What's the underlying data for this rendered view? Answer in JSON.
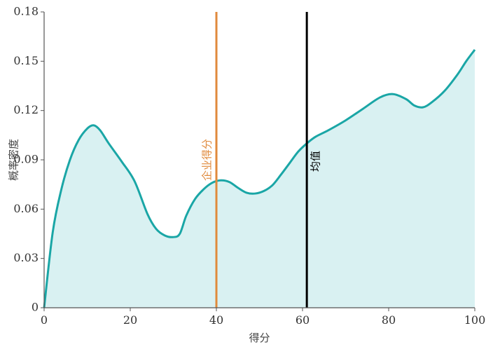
{
  "chart_data": {
    "type": "area",
    "xlabel": "得分",
    "ylabel": "概率密度",
    "xlim": [
      0,
      100
    ],
    "ylim": [
      0,
      0.18
    ],
    "x_ticks": [
      "0",
      "20",
      "40",
      "60",
      "80",
      "100"
    ],
    "y_ticks": [
      "0",
      "0.03",
      "0.06",
      "0.09",
      "0.12",
      "0.15",
      "0.18"
    ],
    "grid": false,
    "series": [
      {
        "x": [
          0,
          2,
          4,
          6,
          8,
          10,
          11.5,
          13,
          15,
          18,
          21,
          24,
          26,
          28,
          30,
          31.5,
          33,
          35,
          37,
          39,
          41,
          43,
          45,
          47,
          49,
          51,
          53,
          55,
          57,
          59,
          61,
          63,
          66,
          70,
          74,
          78,
          81,
          84,
          86,
          88,
          90,
          93,
          96,
          98,
          100
        ],
        "y": [
          0,
          0.046,
          0.072,
          0.09,
          0.102,
          0.109,
          0.111,
          0.108,
          0.1,
          0.089,
          0.077,
          0.057,
          0.048,
          0.044,
          0.043,
          0.045,
          0.056,
          0.066,
          0.072,
          0.076,
          0.0775,
          0.0765,
          0.073,
          0.07,
          0.0695,
          0.071,
          0.0745,
          0.081,
          0.088,
          0.095,
          0.1,
          0.104,
          0.108,
          0.114,
          0.121,
          0.128,
          0.13,
          0.127,
          0.123,
          0.122,
          0.125,
          0.132,
          0.142,
          0.15,
          0.157
        ],
        "line_color": "#1aa6a6",
        "fill_color": "#d9f1f2"
      }
    ],
    "vlines": [
      {
        "x": 40,
        "label": "企业得分",
        "color": "#e08a3c"
      },
      {
        "x": 61,
        "label": "均值",
        "color": "#000000"
      }
    ]
  }
}
